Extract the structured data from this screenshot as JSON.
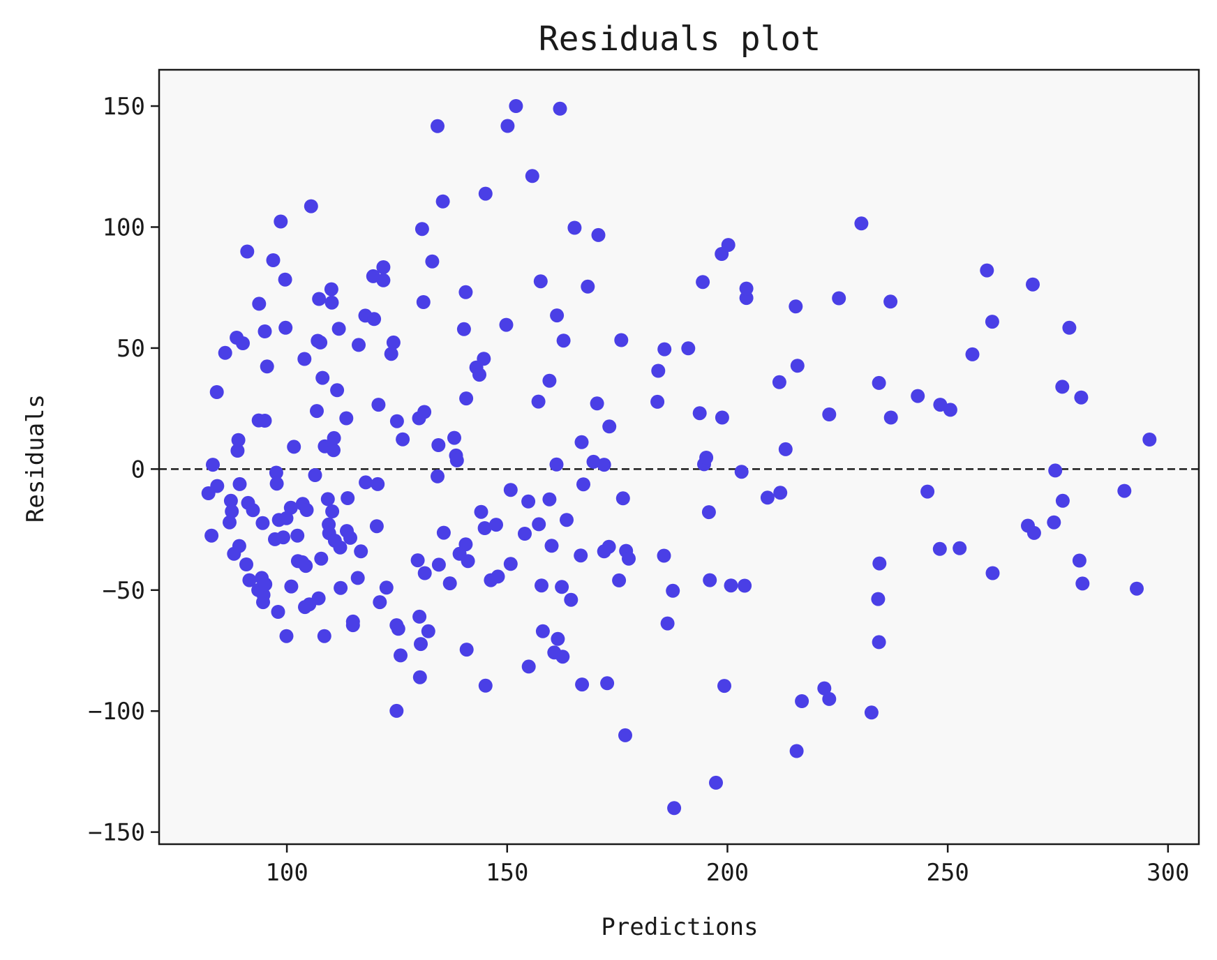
{
  "chart_data": {
    "type": "scatter",
    "title": "Residuals plot",
    "xlabel": "Predictions",
    "ylabel": "Residuals",
    "xlim": [
      71,
      307
    ],
    "ylim": [
      -155,
      165
    ],
    "xticks": [
      100,
      150,
      200,
      250,
      300
    ],
    "xtick_labels": [
      "100",
      "150",
      "200",
      "250",
      "300"
    ],
    "yticks": [
      150,
      100,
      50,
      0,
      -50,
      -100,
      -150
    ],
    "ytick_labels": [
      "150",
      "100",
      "50",
      "0",
      "−50",
      "−100",
      "−150"
    ],
    "grid": false,
    "reference_line": {
      "y": 0,
      "style": "dashed",
      "color": "#1a1a1a"
    },
    "colors": {
      "points": "#4a3fe6",
      "plot_background": "#f8f8f8",
      "axes": "#1a1a1a"
    },
    "points": [
      [
        82.2,
        -10.0
      ],
      [
        82.9,
        -27.5
      ],
      [
        83.2,
        1.8
      ],
      [
        84.1,
        31.8
      ],
      [
        84.2,
        -7.0
      ],
      [
        86.0,
        48.0
      ],
      [
        87.0,
        -22.0
      ],
      [
        87.3,
        -13.1
      ],
      [
        87.5,
        -17.5
      ],
      [
        88.0,
        -35.0
      ],
      [
        88.6,
        54.3
      ],
      [
        88.8,
        7.6
      ],
      [
        89.0,
        12.0
      ],
      [
        89.2,
        -31.8
      ],
      [
        89.3,
        -6.2
      ],
      [
        90.0,
        52.0
      ],
      [
        90.8,
        -39.4
      ],
      [
        91.0,
        89.9
      ],
      [
        91.2,
        -14.0
      ],
      [
        91.5,
        -45.9
      ],
      [
        92.3,
        -17.0
      ],
      [
        93.5,
        -50.0
      ],
      [
        93.6,
        20.1
      ],
      [
        93.7,
        68.3
      ],
      [
        94.3,
        -45.0
      ],
      [
        94.5,
        -22.3
      ],
      [
        94.6,
        -55.0
      ],
      [
        94.7,
        -52.0
      ],
      [
        95.0,
        56.9
      ],
      [
        95.0,
        20.0
      ],
      [
        95.1,
        -47.6
      ],
      [
        95.5,
        42.4
      ],
      [
        96.9,
        86.3
      ],
      [
        97.3,
        -29.0
      ],
      [
        97.6,
        -1.5
      ],
      [
        97.7,
        -6.0
      ],
      [
        98.0,
        -59.0
      ],
      [
        98.2,
        -21.0
      ],
      [
        98.6,
        102.3
      ],
      [
        99.2,
        -28.2
      ],
      [
        99.6,
        78.3
      ],
      [
        99.7,
        58.4
      ],
      [
        99.9,
        -20.3
      ],
      [
        99.9,
        -69.0
      ],
      [
        100.9,
        -16.0
      ],
      [
        101.0,
        -48.5
      ],
      [
        101.6,
        9.2
      ],
      [
        102.4,
        -27.5
      ],
      [
        102.5,
        -38.0
      ],
      [
        103.5,
        -38.5
      ],
      [
        103.6,
        -14.4
      ],
      [
        104.0,
        45.5
      ],
      [
        104.1,
        -57.0
      ],
      [
        104.3,
        -40.0
      ],
      [
        104.5,
        -16.9
      ],
      [
        105.1,
        -55.9
      ],
      [
        105.5,
        108.6
      ],
      [
        106.4,
        -2.5
      ],
      [
        106.8,
        24.0
      ],
      [
        107.0,
        53.0
      ],
      [
        107.2,
        -53.4
      ],
      [
        107.3,
        70.3
      ],
      [
        107.6,
        52.3
      ],
      [
        107.8,
        -37.0
      ],
      [
        108.1,
        37.7
      ],
      [
        108.5,
        -69.0
      ],
      [
        108.6,
        9.4
      ],
      [
        109.3,
        -12.4
      ],
      [
        109.5,
        -22.9
      ],
      [
        109.6,
        -26.5
      ],
      [
        110.1,
        74.3
      ],
      [
        110.2,
        68.8
      ],
      [
        110.3,
        -17.5
      ],
      [
        110.6,
        7.8
      ],
      [
        110.7,
        12.8
      ],
      [
        110.9,
        -29.6
      ],
      [
        111.4,
        32.6
      ],
      [
        111.8,
        58.0
      ],
      [
        112.1,
        -32.4
      ],
      [
        112.2,
        -49.1
      ],
      [
        113.5,
        21.0
      ],
      [
        113.6,
        -25.6
      ],
      [
        113.8,
        -12.0
      ],
      [
        114.4,
        -28.4
      ],
      [
        115.0,
        -63.0
      ],
      [
        115.0,
        -64.5
      ],
      [
        116.1,
        -45.0
      ],
      [
        116.3,
        51.3
      ],
      [
        116.8,
        -34.0
      ],
      [
        117.8,
        63.4
      ],
      [
        117.9,
        -5.5
      ],
      [
        119.6,
        79.7
      ],
      [
        119.8,
        62.0
      ],
      [
        120.4,
        -23.6
      ],
      [
        120.6,
        -6.2
      ],
      [
        120.8,
        26.6
      ],
      [
        121.1,
        -55.0
      ],
      [
        121.9,
        83.4
      ],
      [
        121.9,
        78.0
      ],
      [
        122.6,
        -49.0
      ],
      [
        123.7,
        47.6
      ],
      [
        124.2,
        52.3
      ],
      [
        124.9,
        -64.5
      ],
      [
        124.9,
        -99.9
      ],
      [
        125.0,
        19.8
      ],
      [
        125.3,
        -66.0
      ],
      [
        125.8,
        -77.0
      ],
      [
        126.3,
        12.3
      ],
      [
        129.7,
        -37.7
      ],
      [
        130.0,
        21.0
      ],
      [
        130.1,
        -61.0
      ],
      [
        130.2,
        -86.0
      ],
      [
        130.4,
        -72.3
      ],
      [
        130.7,
        99.2
      ],
      [
        131.0,
        69.0
      ],
      [
        131.2,
        23.6
      ],
      [
        131.3,
        -43.0
      ],
      [
        132.1,
        -67.0
      ],
      [
        133.0,
        85.8
      ],
      [
        134.2,
        141.7
      ],
      [
        134.2,
        -3.0
      ],
      [
        134.4,
        9.9
      ],
      [
        134.5,
        -39.5
      ],
      [
        135.4,
        110.6
      ],
      [
        135.6,
        -26.3
      ],
      [
        137.0,
        -47.2
      ],
      [
        138.0,
        12.9
      ],
      [
        138.4,
        5.6
      ],
      [
        138.6,
        3.6
      ],
      [
        139.2,
        -35.0
      ],
      [
        140.2,
        57.8
      ],
      [
        140.6,
        73.1
      ],
      [
        140.6,
        -31.1
      ],
      [
        140.7,
        29.2
      ],
      [
        140.8,
        -74.6
      ],
      [
        141.1,
        -38.0
      ],
      [
        143.0,
        42.0
      ],
      [
        143.7,
        39.0
      ],
      [
        144.1,
        -17.7
      ],
      [
        144.7,
        45.6
      ],
      [
        144.9,
        -24.4
      ],
      [
        145.1,
        113.8
      ],
      [
        145.1,
        -89.5
      ],
      [
        146.3,
        -45.9
      ],
      [
        147.5,
        -23.0
      ],
      [
        147.9,
        -44.4
      ],
      [
        149.8,
        59.6
      ],
      [
        150.1,
        141.8
      ],
      [
        150.8,
        -8.6
      ],
      [
        150.8,
        -39.2
      ],
      [
        152.0,
        150.0
      ],
      [
        154.0,
        -26.7
      ],
      [
        154.8,
        -13.4
      ],
      [
        154.9,
        -81.6
      ],
      [
        155.7,
        121.1
      ],
      [
        157.1,
        27.9
      ],
      [
        157.2,
        -22.8
      ],
      [
        157.6,
        77.6
      ],
      [
        157.8,
        -48.1
      ],
      [
        158.1,
        -67.0
      ],
      [
        159.6,
        36.5
      ],
      [
        159.6,
        -12.5
      ],
      [
        160.1,
        -31.7
      ],
      [
        160.7,
        -75.8
      ],
      [
        161.2,
        1.9
      ],
      [
        161.3,
        63.5
      ],
      [
        161.5,
        -70.2
      ],
      [
        162.0,
        148.9
      ],
      [
        162.4,
        -48.7
      ],
      [
        162.6,
        -77.5
      ],
      [
        162.8,
        53.1
      ],
      [
        163.5,
        -21.0
      ],
      [
        164.5,
        -54.0
      ],
      [
        165.3,
        99.7
      ],
      [
        166.7,
        -35.7
      ],
      [
        166.9,
        11.1
      ],
      [
        167.0,
        -89.0
      ],
      [
        167.3,
        -6.3
      ],
      [
        168.3,
        75.4
      ],
      [
        169.6,
        3.0
      ],
      [
        170.4,
        27.1
      ],
      [
        170.7,
        96.7
      ],
      [
        172.0,
        1.8
      ],
      [
        172.0,
        -34.0
      ],
      [
        172.7,
        -88.5
      ],
      [
        173.1,
        -32.1
      ],
      [
        173.2,
        17.6
      ],
      [
        175.4,
        -46.0
      ],
      [
        175.9,
        53.3
      ],
      [
        176.3,
        -12.1
      ],
      [
        176.8,
        -110.0
      ],
      [
        177.0,
        -33.8
      ],
      [
        177.6,
        -37.0
      ],
      [
        184.1,
        27.8
      ],
      [
        184.3,
        40.6
      ],
      [
        185.6,
        -35.8
      ],
      [
        185.7,
        49.5
      ],
      [
        186.4,
        -63.8
      ],
      [
        187.6,
        -50.3
      ],
      [
        187.9,
        -140.1
      ],
      [
        191.1,
        49.9
      ],
      [
        193.7,
        23.1
      ],
      [
        194.4,
        77.3
      ],
      [
        194.7,
        2.0
      ],
      [
        195.2,
        4.7
      ],
      [
        195.8,
        -17.8
      ],
      [
        196.0,
        -45.9
      ],
      [
        197.4,
        -129.6
      ],
      [
        198.7,
        88.9
      ],
      [
        198.8,
        21.3
      ],
      [
        199.3,
        -89.6
      ],
      [
        200.2,
        92.6
      ],
      [
        200.8,
        -48.1
      ],
      [
        203.2,
        -1.1
      ],
      [
        203.9,
        -48.2
      ],
      [
        204.3,
        70.7
      ],
      [
        204.3,
        74.6
      ],
      [
        209.1,
        -11.8
      ],
      [
        211.8,
        35.9
      ],
      [
        212.0,
        -9.8
      ],
      [
        213.2,
        8.2
      ],
      [
        215.5,
        67.2
      ],
      [
        215.7,
        -116.5
      ],
      [
        215.9,
        42.7
      ],
      [
        216.9,
        -95.9
      ],
      [
        222.0,
        -90.6
      ],
      [
        223.1,
        22.6
      ],
      [
        223.1,
        -95.0
      ],
      [
        225.3,
        70.6
      ],
      [
        230.4,
        101.5
      ],
      [
        232.7,
        -100.6
      ],
      [
        234.2,
        -53.7
      ],
      [
        234.4,
        35.6
      ],
      [
        234.4,
        -71.5
      ],
      [
        234.5,
        -39.0
      ],
      [
        237.0,
        69.2
      ],
      [
        237.1,
        21.3
      ],
      [
        243.2,
        30.2
      ],
      [
        245.4,
        -9.3
      ],
      [
        248.2,
        -33.0
      ],
      [
        248.3,
        26.6
      ],
      [
        250.6,
        24.5
      ],
      [
        252.7,
        -32.7
      ],
      [
        255.6,
        47.4
      ],
      [
        258.9,
        82.1
      ],
      [
        260.1,
        60.9
      ],
      [
        260.2,
        -43.0
      ],
      [
        268.2,
        -23.4
      ],
      [
        269.3,
        76.3
      ],
      [
        269.6,
        -26.4
      ],
      [
        274.1,
        -22.0
      ],
      [
        274.4,
        -0.6
      ],
      [
        276.0,
        34.0
      ],
      [
        276.1,
        -13.1
      ],
      [
        277.6,
        58.4
      ],
      [
        279.9,
        -37.8
      ],
      [
        280.3,
        29.6
      ],
      [
        280.6,
        -47.3
      ],
      [
        290.1,
        -9.0
      ],
      [
        292.9,
        -49.4
      ],
      [
        295.8,
        12.2
      ]
    ]
  }
}
